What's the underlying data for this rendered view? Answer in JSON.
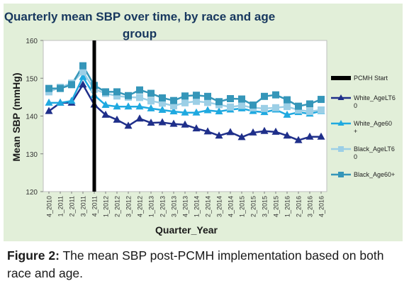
{
  "caption": {
    "label": "Figure 2:",
    "text": " The mean SBP post-PCMH implementation based on both race and age."
  },
  "chart_data": {
    "type": "line",
    "title_lines": [
      "Quarterly mean SBP over time, by race and age",
      "group"
    ],
    "xlabel": "Quarter_Year",
    "ylabel": "Mean SBP (mmHg)",
    "ylim": [
      120,
      160
    ],
    "yticks": [
      120,
      130,
      140,
      150,
      160
    ],
    "grid": false,
    "legend_position": "right",
    "categories": [
      "4_2010",
      "1_2011",
      "2_2011",
      "3_2011",
      "4_2011",
      "1_2012",
      "2_2012",
      "3_2012",
      "4_2012",
      "1_2013",
      "2_2013",
      "3_2013",
      "4_2013",
      "1_2014",
      "2_2014",
      "3_2014",
      "4_2014",
      "1_2015",
      "2_2015",
      "3_2015",
      "4_2015",
      "1_2016",
      "2_2016",
      "3_2016",
      "4_2016"
    ],
    "marker_categories": [
      "4_2010",
      "1_2011",
      "2_2011",
      "3_2011",
      "4_2011",
      "1_2012",
      "2_2012",
      "3_2012",
      "4_2012",
      "1_2013",
      "2_2013",
      "3_2013",
      "4_2013",
      "1_2014",
      "2_2014",
      "3_2014",
      "4_2014",
      "1_2015",
      "2_2015",
      "3_2015",
      "4_2015",
      "1_2016",
      "2_2016",
      "3_2016",
      "4_2016"
    ],
    "vline": {
      "at": "4_2011",
      "name": "PCMH Start",
      "color": "#000000"
    },
    "series": [
      {
        "name": "White_AgeLT60",
        "legend_lines": [
          "White_AgeLT6",
          "0"
        ],
        "color": "#1f2f8a",
        "marker": "triangle",
        "values": [
          141.3,
          143.5,
          143.5,
          148.3,
          143.0,
          140.3,
          139.0,
          137.4,
          139.3,
          138.2,
          138.3,
          137.9,
          137.7,
          136.7,
          135.9,
          134.8,
          135.7,
          134.4,
          135.6,
          136.0,
          135.8,
          134.8,
          133.6,
          134.5,
          134.5
        ]
      },
      {
        "name": "White_Age60+",
        "legend_lines": [
          "White_Age60",
          "+"
        ],
        "color": "#1fa9e0",
        "marker": "triangle",
        "values": [
          143.5,
          143.5,
          144.0,
          150.3,
          145.5,
          142.9,
          142.5,
          142.5,
          142.5,
          142.0,
          141.6,
          141.2,
          140.9,
          140.9,
          141.5,
          141.2,
          141.7,
          142.0,
          141.3,
          141.0,
          141.7,
          140.3,
          141.0,
          140.6,
          141.3
        ]
      },
      {
        "name": "Black_AgeLT60",
        "legend_lines": [
          "Black_AgeLT6",
          "0"
        ],
        "color": "#9ccfe6",
        "marker": "square",
        "values": [
          146.4,
          147.6,
          148.7,
          151.7,
          147.1,
          146.0,
          145.3,
          145.0,
          144.9,
          144.0,
          143.4,
          142.7,
          143.5,
          143.9,
          143.6,
          143.0,
          142.4,
          142.8,
          142.2,
          142.0,
          142.2,
          142.5,
          141.6,
          141.2,
          141.6
        ]
      },
      {
        "name": "Black_Age60+",
        "legend_lines": [
          "Black_Age60+"
        ],
        "color": "#3596b9",
        "marker": "square",
        "values": [
          147.3,
          147.3,
          148.3,
          153.3,
          148.1,
          146.4,
          146.4,
          145.4,
          146.9,
          146.0,
          144.8,
          144.1,
          145.3,
          145.5,
          145.2,
          143.8,
          144.6,
          144.5,
          142.9,
          145.2,
          145.6,
          144.3,
          142.6,
          143.2,
          144.4
        ]
      }
    ]
  }
}
